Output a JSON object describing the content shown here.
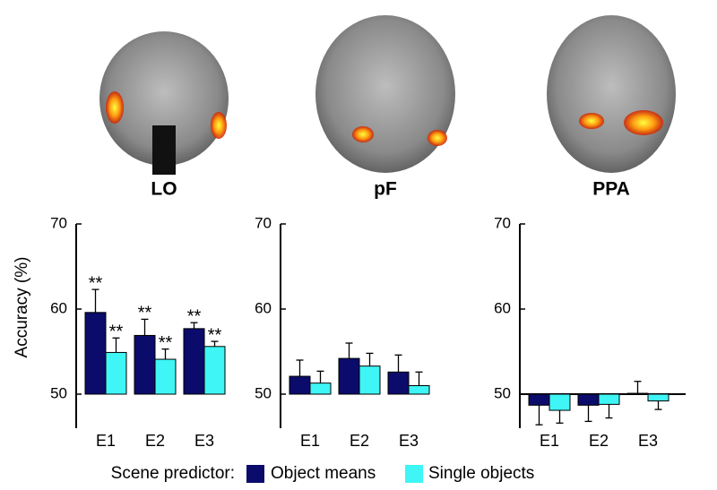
{
  "chart_data": [
    {
      "type": "bar",
      "title": "LO",
      "y_label": "Accuracy (%)",
      "categories": [
        "E1",
        "E2",
        "E3"
      ],
      "series": [
        {
          "name": "Object means",
          "color": "#0b0b6b",
          "values": [
            59.6,
            56.9,
            57.7
          ],
          "errors": [
            2.7,
            1.9,
            0.7
          ],
          "value_labels": [
            "**",
            "**",
            "**"
          ]
        },
        {
          "name": "Single objects",
          "color": "#3ff5f5",
          "values": [
            54.9,
            54.1,
            55.6
          ],
          "errors": [
            1.7,
            1.2,
            0.6
          ],
          "value_labels": [
            "**",
            "**",
            "**"
          ]
        }
      ],
      "ylim": [
        46,
        70
      ],
      "yticks": [
        50,
        60,
        70
      ],
      "baseline": 50,
      "baseline_line": false
    },
    {
      "type": "bar",
      "title": "pF",
      "categories": [
        "E1",
        "E2",
        "E3"
      ],
      "series": [
        {
          "name": "Object means",
          "color": "#0b0b6b",
          "values": [
            52.1,
            54.2,
            52.6
          ],
          "errors": [
            1.9,
            1.8,
            2.0
          ]
        },
        {
          "name": "Single objects",
          "color": "#3ff5f5",
          "values": [
            51.3,
            53.3,
            51.0
          ],
          "errors": [
            1.4,
            1.5,
            1.6
          ]
        }
      ],
      "ylim": [
        46,
        70
      ],
      "yticks": [
        50,
        60,
        70
      ],
      "baseline": 50,
      "baseline_line": false
    },
    {
      "type": "bar",
      "title": "PPA",
      "categories": [
        "E1",
        "E2",
        "E3"
      ],
      "series": [
        {
          "name": "Object means",
          "color": "#0b0b6b",
          "values": [
            48.7,
            48.7,
            50.1
          ],
          "errors": [
            2.3,
            1.9,
            1.4
          ]
        },
        {
          "name": "Single objects",
          "color": "#3ff5f5",
          "values": [
            48.1,
            48.8,
            49.2
          ],
          "errors": [
            1.5,
            1.6,
            1.0
          ]
        }
      ],
      "ylim": [
        46,
        70
      ],
      "yticks": [
        50,
        60,
        70
      ],
      "baseline": 50,
      "baseline_line": true
    }
  ],
  "legend_title": "Scene predictor:"
}
